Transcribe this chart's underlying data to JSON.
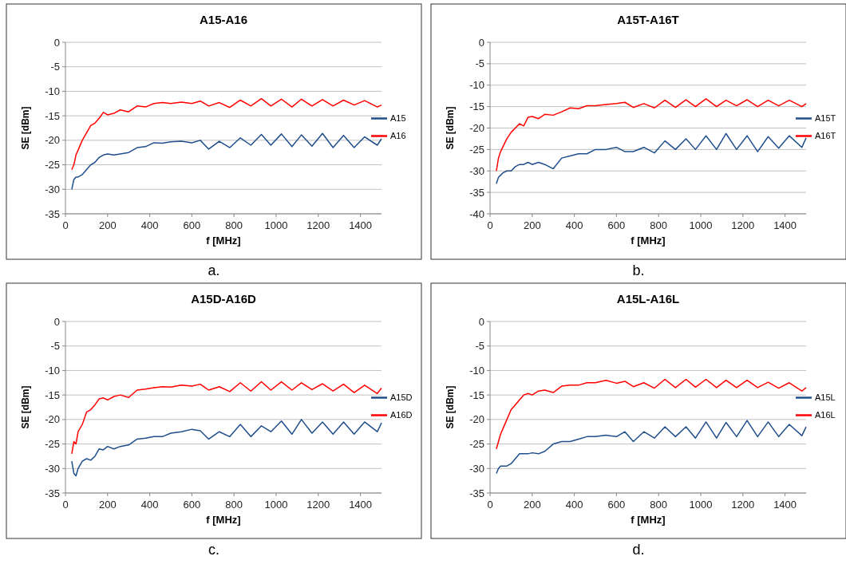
{
  "chart_data": [
    {
      "type": "line",
      "title": "A15-A16",
      "xlabel": "f [MHz]",
      "ylabel": "SE [dBm]",
      "annotations": [
        "a."
      ],
      "xlim": [
        0,
        1500
      ],
      "xticks": [
        0,
        200,
        400,
        600,
        800,
        1000,
        1200,
        1400
      ],
      "ylim": [
        -35,
        0
      ],
      "yticks": [
        -35,
        -30,
        -25,
        -20,
        -15,
        -10,
        -5,
        0
      ],
      "grid": "y",
      "legend": "right",
      "x": [
        30,
        40,
        50,
        60,
        80,
        100,
        120,
        140,
        160,
        180,
        200,
        230,
        260,
        300,
        340,
        380,
        420,
        460,
        500,
        550,
        600,
        640,
        680,
        730,
        780,
        830,
        880,
        930,
        975,
        1025,
        1075,
        1120,
        1170,
        1220,
        1270,
        1320,
        1370,
        1420,
        1480,
        1500
      ],
      "series": [
        {
          "name": "A15",
          "color": "#1f4e8c",
          "values": [
            -30,
            -28,
            -27.5,
            -27.5,
            -27,
            -26,
            -25,
            -24.5,
            -23.5,
            -23,
            -22.8,
            -23,
            -22.8,
            -22.5,
            -21.5,
            -21.3,
            -20.5,
            -20.6,
            -20.3,
            -20.2,
            -20.5,
            -20,
            -21.8,
            -20.2,
            -21.5,
            -19.5,
            -21,
            -18.8,
            -21,
            -18.7,
            -21.3,
            -18.9,
            -21.2,
            -18.6,
            -21.5,
            -19,
            -21.5,
            -19.3,
            -21,
            -19.7
          ]
        },
        {
          "name": "A16",
          "color": "#ff0000",
          "values": [
            -26,
            -25,
            -23,
            -22,
            -20,
            -18.5,
            -17,
            -16.5,
            -15.5,
            -14.3,
            -14.8,
            -14.5,
            -13.8,
            -14.2,
            -13,
            -13.2,
            -12.5,
            -12.3,
            -12.5,
            -12.2,
            -12.5,
            -12,
            -13,
            -12.3,
            -13.3,
            -11.8,
            -13,
            -11.5,
            -13,
            -11.6,
            -13.2,
            -11.6,
            -13,
            -11.7,
            -13,
            -11.8,
            -12.8,
            -11.9,
            -13.2,
            -12.8
          ]
        }
      ]
    },
    {
      "type": "line",
      "title": "A15T-A16T",
      "xlabel": "f [MHz]",
      "ylabel": "SE [dBm]",
      "annotations": [
        "b."
      ],
      "xlim": [
        0,
        1500
      ],
      "xticks": [
        0,
        200,
        400,
        600,
        800,
        1000,
        1200,
        1400
      ],
      "ylim": [
        -40,
        0
      ],
      "yticks": [
        -40,
        -35,
        -30,
        -25,
        -20,
        -15,
        -10,
        -5,
        0
      ],
      "grid": "y",
      "legend": "right",
      "x": [
        30,
        40,
        50,
        60,
        80,
        100,
        120,
        140,
        160,
        180,
        200,
        230,
        260,
        300,
        340,
        380,
        420,
        460,
        500,
        550,
        600,
        640,
        680,
        730,
        780,
        830,
        880,
        930,
        975,
        1025,
        1075,
        1120,
        1170,
        1220,
        1270,
        1320,
        1370,
        1420,
        1480,
        1500
      ],
      "series": [
        {
          "name": "A15T",
          "color": "#1f4e8c",
          "values": [
            -33,
            -31.5,
            -31,
            -30.5,
            -30,
            -30,
            -29,
            -28.5,
            -28.5,
            -28,
            -28.5,
            -28,
            -28.5,
            -29.5,
            -27,
            -26.5,
            -26,
            -26,
            -25,
            -25,
            -24.5,
            -25.5,
            -25.5,
            -24.5,
            -25.8,
            -23,
            -25,
            -22.5,
            -25,
            -21.8,
            -25,
            -21.3,
            -25,
            -21.8,
            -25.5,
            -22,
            -24.7,
            -21.8,
            -24.5,
            -22.3
          ]
        },
        {
          "name": "A16T",
          "color": "#ff0000",
          "values": [
            -30,
            -27,
            -25.5,
            -24.5,
            -22.5,
            -21,
            -20,
            -19,
            -19.5,
            -17.5,
            -17.3,
            -17.8,
            -16.8,
            -17,
            -16.2,
            -15.3,
            -15.5,
            -14.8,
            -14.8,
            -14.5,
            -14.3,
            -14,
            -15.2,
            -14.3,
            -15.3,
            -13.5,
            -15.2,
            -13.4,
            -15,
            -13.2,
            -15,
            -13.5,
            -14.8,
            -13.4,
            -15,
            -13.5,
            -14.8,
            -13.5,
            -15,
            -14.3
          ]
        }
      ]
    },
    {
      "type": "line",
      "title": "A15D-A16D",
      "xlabel": "f [MHz]",
      "ylabel": "SE [dBm]",
      "annotations": [
        "c."
      ],
      "xlim": [
        0,
        1500
      ],
      "xticks": [
        0,
        200,
        400,
        600,
        800,
        1000,
        1200,
        1400
      ],
      "ylim": [
        -35,
        0
      ],
      "yticks": [
        -35,
        -30,
        -25,
        -20,
        -15,
        -10,
        -5,
        0
      ],
      "grid": "y",
      "legend": "right",
      "x": [
        30,
        40,
        50,
        60,
        80,
        100,
        120,
        140,
        160,
        180,
        200,
        230,
        260,
        300,
        340,
        380,
        420,
        460,
        500,
        550,
        600,
        640,
        680,
        730,
        780,
        830,
        880,
        930,
        975,
        1025,
        1075,
        1120,
        1170,
        1220,
        1270,
        1320,
        1370,
        1420,
        1480,
        1500
      ],
      "series": [
        {
          "name": "A15D",
          "color": "#1f4e8c",
          "values": [
            -28.5,
            -31,
            -31.5,
            -30,
            -28.5,
            -28,
            -28.3,
            -27.5,
            -26,
            -26.2,
            -25.5,
            -26,
            -25.5,
            -25.2,
            -24,
            -23.8,
            -23.5,
            -23.5,
            -22.8,
            -22.5,
            -22,
            -22.3,
            -24,
            -22.5,
            -23.5,
            -21,
            -23.5,
            -21.3,
            -22.5,
            -20.3,
            -23,
            -20,
            -22.8,
            -20.5,
            -23,
            -20.5,
            -23,
            -20.5,
            -22.5,
            -20.7
          ]
        },
        {
          "name": "A16D",
          "color": "#ff0000",
          "values": [
            -27,
            -24.5,
            -25,
            -22.5,
            -21,
            -18.5,
            -18,
            -17,
            -15.8,
            -15.6,
            -16,
            -15.3,
            -15,
            -15.5,
            -14,
            -13.8,
            -13.5,
            -13.3,
            -13.4,
            -13,
            -13.2,
            -12.8,
            -14,
            -13.3,
            -14.3,
            -12.5,
            -14.2,
            -12.3,
            -14,
            -12.3,
            -14,
            -12.5,
            -13.9,
            -12.7,
            -14.2,
            -12.8,
            -14.5,
            -13,
            -14.7,
            -13.6
          ]
        }
      ]
    },
    {
      "type": "line",
      "title": "A15L-A16L",
      "xlabel": "f [MHz]",
      "ylabel": "SE [dBm]",
      "annotations": [
        "d."
      ],
      "xlim": [
        0,
        1500
      ],
      "xticks": [
        0,
        200,
        400,
        600,
        800,
        1000,
        1200,
        1400
      ],
      "ylim": [
        -35,
        0
      ],
      "yticks": [
        -35,
        -30,
        -25,
        -20,
        -15,
        -10,
        -5,
        0
      ],
      "grid": "y",
      "legend": "right",
      "x": [
        30,
        40,
        50,
        60,
        80,
        100,
        120,
        140,
        160,
        180,
        200,
        230,
        260,
        300,
        340,
        380,
        420,
        460,
        500,
        550,
        600,
        640,
        680,
        730,
        780,
        830,
        880,
        930,
        975,
        1025,
        1075,
        1120,
        1170,
        1220,
        1270,
        1320,
        1370,
        1420,
        1480,
        1500
      ],
      "series": [
        {
          "name": "A15L",
          "color": "#1f4e8c",
          "values": [
            -31,
            -30,
            -29.5,
            -29.5,
            -29.5,
            -29,
            -28,
            -27,
            -27,
            -27,
            -26.8,
            -27,
            -26.5,
            -25,
            -24.5,
            -24.5,
            -24,
            -23.5,
            -23.5,
            -23.2,
            -23.5,
            -22.5,
            -24.5,
            -22.5,
            -23.8,
            -21.5,
            -23.5,
            -21.5,
            -23.8,
            -20.5,
            -23.8,
            -20.6,
            -23.5,
            -20.2,
            -23.5,
            -20.5,
            -23.5,
            -21,
            -23.3,
            -21.5
          ]
        },
        {
          "name": "A16L",
          "color": "#ff0000",
          "values": [
            -26,
            -24.5,
            -23,
            -22,
            -20,
            -18,
            -17,
            -16,
            -15,
            -14.7,
            -15,
            -14.2,
            -14,
            -14.5,
            -13.2,
            -13,
            -13,
            -12.5,
            -12.5,
            -12,
            -12.6,
            -12.2,
            -13.3,
            -12.5,
            -13.6,
            -11.8,
            -13.5,
            -11.8,
            -13.4,
            -11.8,
            -13.5,
            -12,
            -13.5,
            -12,
            -13.5,
            -12.4,
            -13.6,
            -12.5,
            -14.2,
            -13.5
          ]
        }
      ]
    }
  ]
}
